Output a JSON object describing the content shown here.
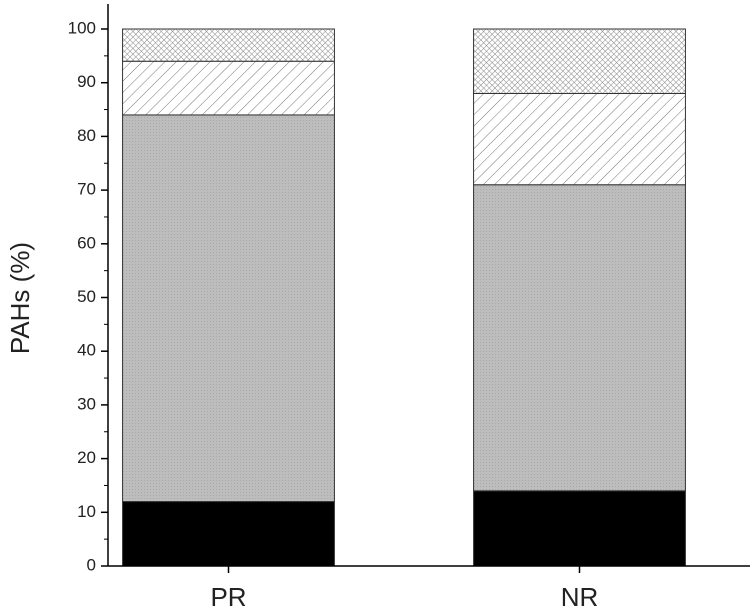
{
  "chart_data": {
    "type": "stacked_bar",
    "y_label": "PAHs (%)",
    "categories": [
      "PR",
      "NR"
    ],
    "series": [
      {
        "color": "#000000",
        "pattern": "solid",
        "values": [
          12,
          14
        ]
      },
      {
        "color": "#bdbdbd",
        "pattern": "dots",
        "values": [
          72,
          57
        ]
      },
      {
        "color": "#ffffff",
        "pattern": "hatch",
        "values": [
          10,
          17
        ]
      },
      {
        "color": "#ffffff",
        "pattern": "crosshatch",
        "values": [
          6,
          12
        ]
      }
    ],
    "ylim": [
      0,
      100
    ],
    "yticks": [
      0,
      10,
      20,
      30,
      40,
      50,
      60,
      70,
      80,
      90,
      100
    ],
    "yminorticks": [
      5,
      15,
      25,
      35,
      45,
      55,
      65,
      75,
      85,
      95
    ]
  }
}
